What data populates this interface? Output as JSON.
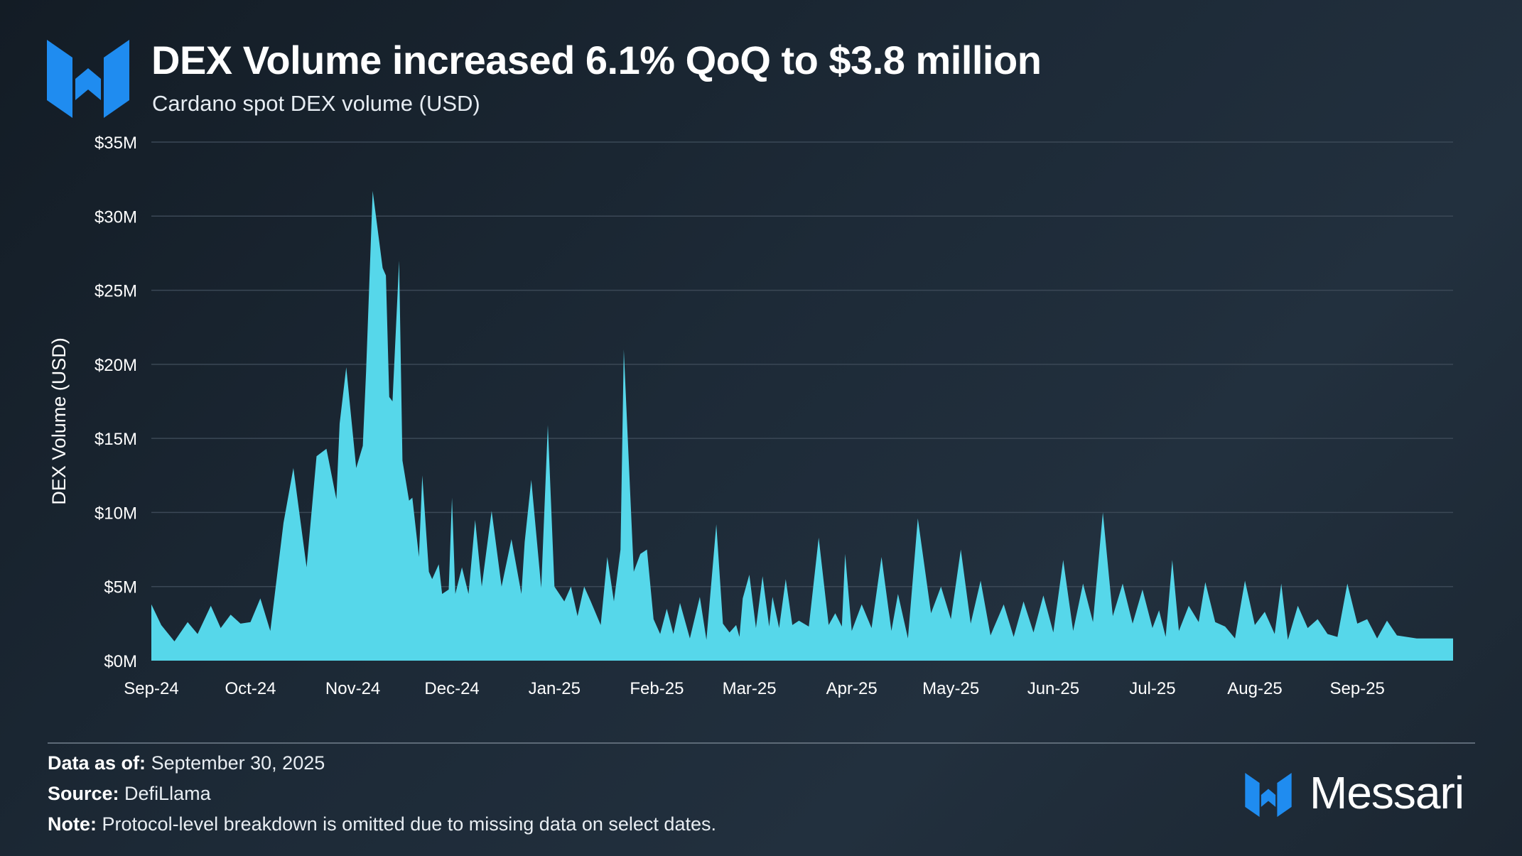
{
  "header": {
    "title": "DEX Volume increased 6.1% QoQ to $3.8 million",
    "subtitle": "Cardano spot DEX volume (USD)"
  },
  "footer": {
    "data_as_of_label": "Data as of:",
    "data_as_of_value": "September 30, 2025",
    "source_label": "Source:",
    "source_value": "DefiLlama",
    "note_label": "Note:",
    "note_value": "Protocol-level breakdown is omitted due to missing data on select dates."
  },
  "brand": {
    "name": "Messari",
    "logo_icon": "messari-m-logo-icon"
  },
  "colors": {
    "area": "#56d7ea",
    "accent_blue": "#1f8cf0",
    "grid": "#3b4856",
    "text": "#ffffff"
  },
  "chart_data": {
    "type": "area",
    "title": "DEX Volume increased 6.1% QoQ to $3.8 million",
    "subtitle": "Cardano spot DEX volume (USD)",
    "ylabel": "DEX Volume (USD)",
    "xlabel": "",
    "ylim": [
      0,
      35
    ],
    "y_unit": "USD millions",
    "yticks": [
      0,
      5,
      10,
      15,
      20,
      25,
      30,
      35
    ],
    "ytick_labels": [
      "$0M",
      "$5M",
      "$10M",
      "$15M",
      "$20M",
      "$25M",
      "$30M",
      "$35M"
    ],
    "xtick_labels": [
      "Sep-24",
      "Oct-24",
      "Nov-24",
      "Dec-24",
      "Jan-25",
      "Feb-25",
      "Mar-25",
      "Apr-25",
      "May-25",
      "Jun-25",
      "Jul-25",
      "Aug-25",
      "Sep-25"
    ],
    "grid": true,
    "legend": "none",
    "series": [
      {
        "x": [
          "2024-09-01",
          "2024-09-04",
          "2024-09-08",
          "2024-09-12",
          "2024-09-15",
          "2024-09-19",
          "2024-09-22",
          "2024-09-25",
          "2024-09-28",
          "2024-10-01",
          "2024-10-04",
          "2024-10-07",
          "2024-10-11",
          "2024-10-14",
          "2024-10-18",
          "2024-10-21",
          "2024-10-24",
          "2024-10-27",
          "2024-10-28",
          "2024-10-30",
          "2024-10-31",
          "2024-11-02",
          "2024-11-04",
          "2024-11-05",
          "2024-11-07",
          "2024-11-10",
          "2024-11-11",
          "2024-11-12",
          "2024-11-13",
          "2024-11-15",
          "2024-11-16",
          "2024-11-18",
          "2024-11-19",
          "2024-11-21",
          "2024-11-22",
          "2024-11-24",
          "2024-11-25",
          "2024-11-27",
          "2024-11-28",
          "2024-11-30",
          "2024-12-01",
          "2024-12-02",
          "2024-12-04",
          "2024-12-06",
          "2024-12-08",
          "2024-12-10",
          "2024-12-13",
          "2024-12-16",
          "2024-12-19",
          "2024-12-22",
          "2024-12-23",
          "2024-12-25",
          "2024-12-28",
          "2024-12-30",
          "2025-01-01",
          "2025-01-04",
          "2025-01-06",
          "2025-01-08",
          "2025-01-10",
          "2025-01-12",
          "2025-01-15",
          "2025-01-17",
          "2025-01-19",
          "2025-01-21",
          "2025-01-22",
          "2025-01-24",
          "2025-01-25",
          "2025-01-27",
          "2025-01-29",
          "2025-01-31",
          "2025-02-02",
          "2025-02-04",
          "2025-02-06",
          "2025-02-08",
          "2025-02-11",
          "2025-02-14",
          "2025-02-16",
          "2025-02-19",
          "2025-02-21",
          "2025-02-23",
          "2025-02-25",
          "2025-02-26",
          "2025-02-27",
          "2025-03-01",
          "2025-03-03",
          "2025-03-05",
          "2025-03-07",
          "2025-03-08",
          "2025-03-10",
          "2025-03-12",
          "2025-03-14",
          "2025-03-16",
          "2025-03-19",
          "2025-03-22",
          "2025-03-25",
          "2025-03-27",
          "2025-03-29",
          "2025-03-30",
          "2025-04-01",
          "2025-04-04",
          "2025-04-07",
          "2025-04-10",
          "2025-04-13",
          "2025-04-15",
          "2025-04-18",
          "2025-04-21",
          "2025-04-25",
          "2025-04-28",
          "2025-05-01",
          "2025-05-04",
          "2025-05-07",
          "2025-05-10",
          "2025-05-13",
          "2025-05-17",
          "2025-05-20",
          "2025-05-23",
          "2025-05-26",
          "2025-05-29",
          "2025-06-01",
          "2025-06-04",
          "2025-06-07",
          "2025-06-10",
          "2025-06-13",
          "2025-06-16",
          "2025-06-19",
          "2025-06-22",
          "2025-06-25",
          "2025-06-28",
          "2025-07-01",
          "2025-07-03",
          "2025-07-05",
          "2025-07-07",
          "2025-07-09",
          "2025-07-12",
          "2025-07-15",
          "2025-07-17",
          "2025-07-20",
          "2025-07-23",
          "2025-07-26",
          "2025-07-29",
          "2025-08-01",
          "2025-08-04",
          "2025-08-07",
          "2025-08-09",
          "2025-08-11",
          "2025-08-14",
          "2025-08-17",
          "2025-08-20",
          "2025-08-23",
          "2025-08-26",
          "2025-08-29",
          "2025-09-01",
          "2025-09-04",
          "2025-09-07",
          "2025-09-10",
          "2025-09-13",
          "2025-09-16",
          "2025-09-19",
          "2025-09-22",
          "2025-09-25",
          "2025-09-28",
          "2025-09-30"
        ],
        "values": [
          3.8,
          2.4,
          1.3,
          2.6,
          1.8,
          3.7,
          2.2,
          3.1,
          2.5,
          2.6,
          4.2,
          2.0,
          9.3,
          13.0,
          6.3,
          13.8,
          14.3,
          10.9,
          16.0,
          19.8,
          17.5,
          13.0,
          14.5,
          19.5,
          31.7,
          26.5,
          26.0,
          17.8,
          17.5,
          27.0,
          13.5,
          10.8,
          11.0,
          7.0,
          12.5,
          6.0,
          5.5,
          6.5,
          4.5,
          4.8,
          11.0,
          4.5,
          6.3,
          4.5,
          9.5,
          5.0,
          10.1,
          5.0,
          8.2,
          4.5,
          8.0,
          12.2,
          4.9,
          15.9,
          5.0,
          4.0,
          5.0,
          3.0,
          5.0,
          4.0,
          2.4,
          7.0,
          4.0,
          7.5,
          21.0,
          11.0,
          6.0,
          7.2,
          7.5,
          2.8,
          1.8,
          3.5,
          1.8,
          3.9,
          1.5,
          4.3,
          1.4,
          9.2,
          2.5,
          1.9,
          2.4,
          1.6,
          4.2,
          5.8,
          2.2,
          5.7,
          2.3,
          4.3,
          2.2,
          5.5,
          2.4,
          2.7,
          2.3,
          8.3,
          2.4,
          3.2,
          2.3,
          7.2,
          2.0,
          3.8,
          2.2,
          7.0,
          2.0,
          4.5,
          1.5,
          9.6,
          3.2,
          5.0,
          2.8,
          7.5,
          2.5,
          5.4,
          1.7,
          3.8,
          1.6,
          4.0,
          1.9,
          4.4,
          1.9,
          6.8,
          2.0,
          5.2,
          2.6,
          10.0,
          3.0,
          5.2,
          2.5,
          4.8,
          2.2,
          3.4,
          1.6,
          6.8,
          2.0,
          3.7,
          2.6,
          5.3,
          2.6,
          2.3,
          1.5,
          5.4,
          2.4,
          3.3,
          1.8,
          5.2,
          1.4,
          3.7,
          2.2,
          2.8,
          1.8,
          1.6,
          5.2,
          2.5,
          2.8,
          1.5,
          2.7,
          1.7,
          1.6,
          1.5,
          1.5,
          1.5,
          1.5,
          1.5
        ]
      }
    ]
  }
}
